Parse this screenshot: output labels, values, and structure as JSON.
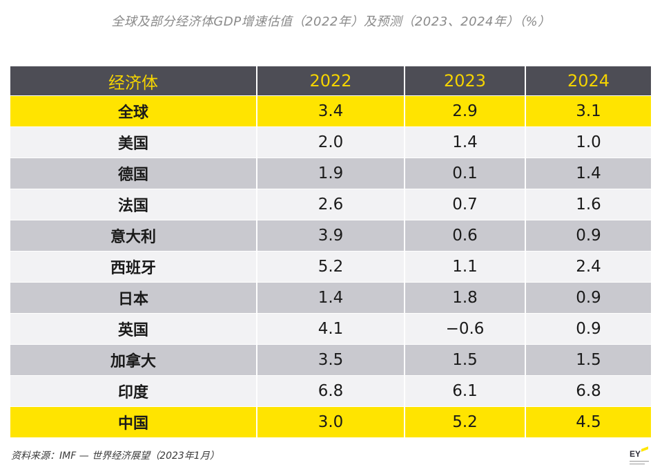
{
  "title": "全球及部分经济体GDP增速估值（2022年）及预测（2023、2024年）（%）",
  "table": {
    "headers": [
      "经济体",
      "2022",
      "2023",
      "2024"
    ],
    "rows": [
      {
        "name": "全球",
        "v2022": "3.4",
        "v2023": "2.9",
        "v2024": "3.1"
      },
      {
        "name": "美国",
        "v2022": "2.0",
        "v2023": "1.4",
        "v2024": "1.0"
      },
      {
        "name": "德国",
        "v2022": "1.9",
        "v2023": "0.1",
        "v2024": "1.4"
      },
      {
        "name": "法国",
        "v2022": "2.6",
        "v2023": "0.7",
        "v2024": "1.6"
      },
      {
        "name": "意大利",
        "v2022": "3.9",
        "v2023": "0.6",
        "v2024": "0.9"
      },
      {
        "name": "西班牙",
        "v2022": "5.2",
        "v2023": "1.1",
        "v2024": "2.4"
      },
      {
        "name": "日本",
        "v2022": "1.4",
        "v2023": "1.8",
        "v2024": "0.9"
      },
      {
        "name": "英国",
        "v2022": "4.1",
        "v2023": "−0.6",
        "v2024": "0.9"
      },
      {
        "name": "加拿大",
        "v2022": "3.5",
        "v2023": "1.5",
        "v2024": "1.5"
      },
      {
        "name": "印度",
        "v2022": "6.8",
        "v2023": "6.1",
        "v2024": "6.8"
      },
      {
        "name": "中国",
        "v2022": "3.0",
        "v2023": "5.2",
        "v2024": "4.5"
      }
    ]
  },
  "source": "资料来源：IMF — 世界经济展望（2023年1月）",
  "logo": {
    "text": "EY",
    "icon": "ey-logo-icon"
  },
  "colors": {
    "header_bg": "#4d4d55",
    "header_text": "#f5d400",
    "highlight": "#ffe400",
    "row_light": "#f2f2f4",
    "row_dark": "#c9c9cf"
  }
}
